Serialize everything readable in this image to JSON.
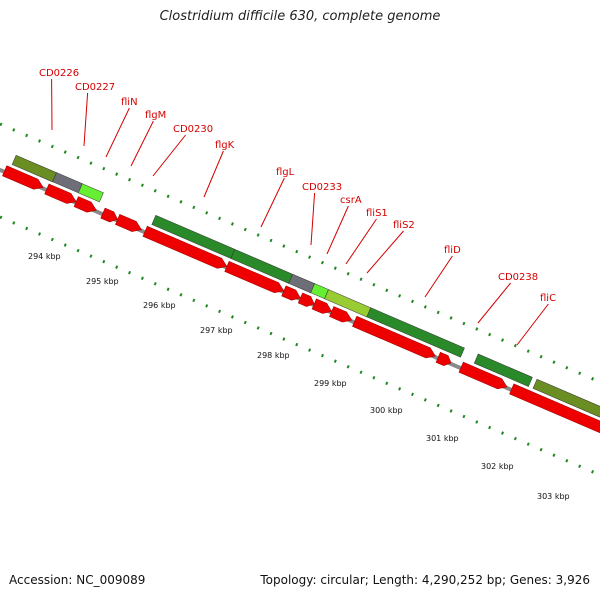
{
  "title": "Clostridium difficile 630, complete genome",
  "footer": {
    "accession": "Accession: NC_009089",
    "topology": "Topology: circular; Length: 4,290,252 bp; Genes: 3,926"
  },
  "colors": {
    "cds": "#ee0000",
    "backbone": "#8a8a8a",
    "tick": "#228822",
    "label": "#d40000",
    "gene_green": "#2a8a2a",
    "gene_olive": "#6b8e23",
    "gene_gray": "#6e6e78",
    "gene_lime": "#66ee33"
  },
  "scale_labels": [
    "294 kbp",
    "295 kbp",
    "296 kbp",
    "297 kbp",
    "298 kbp",
    "299 kbp",
    "300 kbp",
    "301 kbp",
    "302 kbp",
    "303 kbp"
  ],
  "gene_labels": [
    "CD0226",
    "CD0227",
    "fliN",
    "flgM",
    "CD0230",
    "flgK",
    "flgL",
    "CD0233",
    "csrA",
    "fliS1",
    "fliS2",
    "fliD",
    "CD0238",
    "fliC"
  ]
}
